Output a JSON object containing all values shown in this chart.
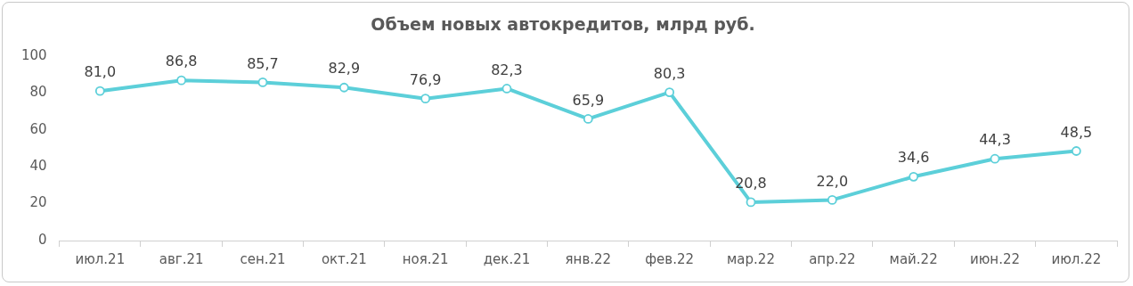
{
  "chart_data": {
    "type": "line",
    "title": "Объем новых автокредитов, млрд руб.",
    "categories": [
      "июл.21",
      "авг.21",
      "сен.21",
      "окт.21",
      "ноя.21",
      "дек.21",
      "янв.22",
      "фев.22",
      "мар.22",
      "апр.22",
      "май.22",
      "июн.22",
      "июл.22"
    ],
    "series": [
      {
        "color": "#5ccfd9",
        "values": [
          81.0,
          86.8,
          85.7,
          82.9,
          76.9,
          82.3,
          65.9,
          80.3,
          20.8,
          22.0,
          34.6,
          44.3,
          48.5
        ],
        "value_labels": [
          "81,0",
          "86,8",
          "85,7",
          "82,9",
          "76,9",
          "82,3",
          "65,9",
          "80,3",
          "20,8",
          "22,0",
          "34,6",
          "44,3",
          "48,5"
        ]
      }
    ],
    "ylim": [
      0,
      100
    ],
    "yticks": [
      0,
      20,
      40,
      60,
      80,
      100
    ],
    "grid": false,
    "legend": false,
    "marker": "circle",
    "line_style": "solid"
  }
}
